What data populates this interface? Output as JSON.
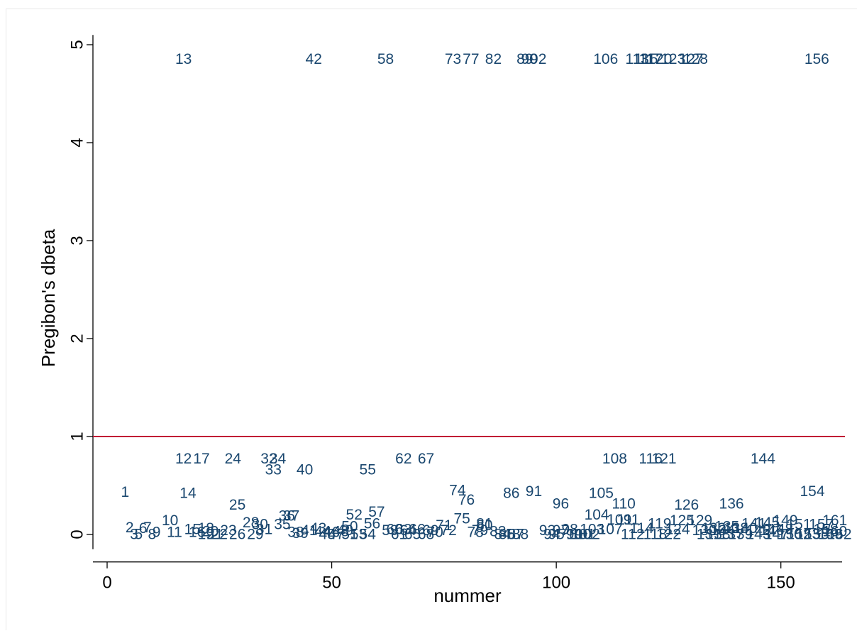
{
  "chart_data": {
    "type": "scatter",
    "marker": "observation-number labels",
    "xlabel": "nummer",
    "ylabel": "Pregibon's dbeta",
    "xlim": [
      -3,
      165
    ],
    "ylim": [
      -0.15,
      5.1
    ],
    "xticks": [
      0,
      50,
      100,
      150
    ],
    "yticks": [
      0,
      1,
      2,
      3,
      4,
      5
    ],
    "grid": false,
    "reference_line": {
      "y": 1,
      "color": "#c10534"
    },
    "label_color": "#1a476f",
    "points": [
      {
        "label": "1",
        "x": 4,
        "y": 0.43
      },
      {
        "label": "2",
        "x": 5,
        "y": 0.07
      },
      {
        "label": "3",
        "x": 6,
        "y": 0.0
      },
      {
        "label": "5",
        "x": 7,
        "y": 0.0
      },
      {
        "label": "6",
        "x": 8,
        "y": 0.06
      },
      {
        "label": "7",
        "x": 9,
        "y": 0.07
      },
      {
        "label": "8",
        "x": 10,
        "y": 0.0
      },
      {
        "label": "9",
        "x": 11,
        "y": 0.02
      },
      {
        "label": "10",
        "x": 14,
        "y": 0.14
      },
      {
        "label": "11",
        "x": 15,
        "y": 0.02
      },
      {
        "label": "12",
        "x": 17,
        "y": 0.77
      },
      {
        "label": "13",
        "x": 17,
        "y": 4.85
      },
      {
        "label": "14",
        "x": 18,
        "y": 0.42
      },
      {
        "label": "15",
        "x": 19,
        "y": 0.05
      },
      {
        "label": "16",
        "x": 20,
        "y": 0.02
      },
      {
        "label": "17",
        "x": 21,
        "y": 0.77
      },
      {
        "label": "18",
        "x": 22,
        "y": 0.06
      },
      {
        "label": "19",
        "x": 22,
        "y": 0.0
      },
      {
        "label": "20",
        "x": 23,
        "y": 0.03
      },
      {
        "label": "21",
        "x": 24,
        "y": 0.0
      },
      {
        "label": "22",
        "x": 25,
        "y": 0.0
      },
      {
        "label": "23",
        "x": 27,
        "y": 0.04
      },
      {
        "label": "24",
        "x": 28,
        "y": 0.77
      },
      {
        "label": "25",
        "x": 29,
        "y": 0.3
      },
      {
        "label": "26",
        "x": 29,
        "y": 0.0
      },
      {
        "label": "28",
        "x": 32,
        "y": 0.12
      },
      {
        "label": "29",
        "x": 33,
        "y": 0.0
      },
      {
        "label": "30",
        "x": 34,
        "y": 0.1
      },
      {
        "label": "31",
        "x": 35,
        "y": 0.05
      },
      {
        "label": "32",
        "x": 36,
        "y": 0.77
      },
      {
        "label": "33",
        "x": 37,
        "y": 0.66
      },
      {
        "label": "34",
        "x": 38,
        "y": 0.77
      },
      {
        "label": "35",
        "x": 39,
        "y": 0.1
      },
      {
        "label": "36",
        "x": 40,
        "y": 0.19
      },
      {
        "label": "37",
        "x": 41,
        "y": 0.19
      },
      {
        "label": "38",
        "x": 42,
        "y": 0.02
      },
      {
        "label": "39",
        "x": 43,
        "y": 0.01
      },
      {
        "label": "40",
        "x": 44,
        "y": 0.66
      },
      {
        "label": "41",
        "x": 45,
        "y": 0.04
      },
      {
        "label": "42",
        "x": 46,
        "y": 4.85
      },
      {
        "label": "43",
        "x": 47,
        "y": 0.06
      },
      {
        "label": "44",
        "x": 48,
        "y": 0.03
      },
      {
        "label": "45",
        "x": 49,
        "y": 0.0
      },
      {
        "label": "46",
        "x": 50,
        "y": 0.02
      },
      {
        "label": "47",
        "x": 51,
        "y": 0.0
      },
      {
        "label": "48",
        "x": 52,
        "y": 0.03
      },
      {
        "label": "49",
        "x": 53,
        "y": 0.04
      },
      {
        "label": "50",
        "x": 54,
        "y": 0.08
      },
      {
        "label": "51",
        "x": 54,
        "y": 0.0
      },
      {
        "label": "52",
        "x": 55,
        "y": 0.2
      },
      {
        "label": "53",
        "x": 56,
        "y": 0.0
      },
      {
        "label": "54",
        "x": 58,
        "y": 0.0
      },
      {
        "label": "55",
        "x": 58,
        "y": 0.66
      },
      {
        "label": "56",
        "x": 59,
        "y": 0.11
      },
      {
        "label": "57",
        "x": 60,
        "y": 0.23
      },
      {
        "label": "58",
        "x": 62,
        "y": 4.85
      },
      {
        "label": "59",
        "x": 63,
        "y": 0.04
      },
      {
        "label": "60",
        "x": 64,
        "y": 0.05
      },
      {
        "label": "61",
        "x": 65,
        "y": 0.0
      },
      {
        "label": "62",
        "x": 66,
        "y": 0.77
      },
      {
        "label": "63",
        "x": 66,
        "y": 0.05
      },
      {
        "label": "64",
        "x": 67,
        "y": 0.04
      },
      {
        "label": "65",
        "x": 68,
        "y": 0.0
      },
      {
        "label": "66",
        "x": 69,
        "y": 0.05
      },
      {
        "label": "67",
        "x": 71,
        "y": 0.77
      },
      {
        "label": "68",
        "x": 71,
        "y": 0.0
      },
      {
        "label": "69",
        "x": 72,
        "y": 0.04
      },
      {
        "label": "70",
        "x": 73,
        "y": 0.02
      },
      {
        "label": "71",
        "x": 75,
        "y": 0.09
      },
      {
        "label": "72",
        "x": 76,
        "y": 0.04
      },
      {
        "label": "73",
        "x": 77,
        "y": 4.85
      },
      {
        "label": "74",
        "x": 78,
        "y": 0.45
      },
      {
        "label": "75",
        "x": 79,
        "y": 0.16
      },
      {
        "label": "76",
        "x": 80,
        "y": 0.35
      },
      {
        "label": "77",
        "x": 81,
        "y": 4.85
      },
      {
        "label": "78",
        "x": 82,
        "y": 0.02
      },
      {
        "label": "79",
        "x": 83,
        "y": 0.04
      },
      {
        "label": "80",
        "x": 84,
        "y": 0.09
      },
      {
        "label": "81",
        "x": 84,
        "y": 0.11
      },
      {
        "label": "82",
        "x": 86,
        "y": 4.85
      },
      {
        "label": "83",
        "x": 87,
        "y": 0.03
      },
      {
        "label": "84",
        "x": 88,
        "y": 0.0
      },
      {
        "label": "85",
        "x": 89,
        "y": 0.0
      },
      {
        "label": "86",
        "x": 90,
        "y": 0.42
      },
      {
        "label": "87",
        "x": 91,
        "y": 0.0
      },
      {
        "label": "88",
        "x": 92,
        "y": 0.0
      },
      {
        "label": "89",
        "x": 93,
        "y": 4.85
      },
      {
        "label": "90",
        "x": 94,
        "y": 4.85
      },
      {
        "label": "91",
        "x": 95,
        "y": 0.44
      },
      {
        "label": "92",
        "x": 96,
        "y": 4.85
      },
      {
        "label": "93",
        "x": 98,
        "y": 0.04
      },
      {
        "label": "94",
        "x": 99,
        "y": 0.0
      },
      {
        "label": "95",
        "x": 100,
        "y": 0.0
      },
      {
        "label": "96",
        "x": 101,
        "y": 0.31
      },
      {
        "label": "97",
        "x": 101,
        "y": 0.04
      },
      {
        "label": "98",
        "x": 103,
        "y": 0.05
      },
      {
        "label": "99",
        "x": 104,
        "y": 0.0
      },
      {
        "label": "100",
        "x": 105,
        "y": 0.0
      },
      {
        "label": "101",
        "x": 106,
        "y": 0.0
      },
      {
        "label": "102",
        "x": 107,
        "y": 0.0
      },
      {
        "label": "103",
        "x": 108,
        "y": 0.05
      },
      {
        "label": "104",
        "x": 109,
        "y": 0.2
      },
      {
        "label": "105",
        "x": 110,
        "y": 0.42
      },
      {
        "label": "106",
        "x": 111,
        "y": 4.85
      },
      {
        "label": "107",
        "x": 112,
        "y": 0.05
      },
      {
        "label": "108",
        "x": 113,
        "y": 0.77
      },
      {
        "label": "109",
        "x": 114,
        "y": 0.15
      },
      {
        "label": "110",
        "x": 115,
        "y": 0.31
      },
      {
        "label": "111",
        "x": 116,
        "y": 0.15
      },
      {
        "label": "112",
        "x": 117,
        "y": 0.0
      },
      {
        "label": "113",
        "x": 118,
        "y": 4.85
      },
      {
        "label": "114",
        "x": 119,
        "y": 0.06
      },
      {
        "label": "115",
        "x": 120,
        "y": 4.85
      },
      {
        "label": "116",
        "x": 121,
        "y": 0.77
      },
      {
        "label": "117",
        "x": 121,
        "y": 4.85
      },
      {
        "label": "118",
        "x": 122,
        "y": 0.0
      },
      {
        "label": "119",
        "x": 123,
        "y": 0.11
      },
      {
        "label": "120",
        "x": 123,
        "y": 4.85
      },
      {
        "label": "121",
        "x": 124,
        "y": 0.77
      },
      {
        "label": "122",
        "x": 125,
        "y": 0.0
      },
      {
        "label": "123",
        "x": 126,
        "y": 4.85
      },
      {
        "label": "124",
        "x": 127,
        "y": 0.05
      },
      {
        "label": "125",
        "x": 128,
        "y": 0.14
      },
      {
        "label": "126",
        "x": 129,
        "y": 0.3
      },
      {
        "label": "127",
        "x": 130,
        "y": 4.85
      },
      {
        "label": "128",
        "x": 131,
        "y": 4.85
      },
      {
        "label": "129",
        "x": 132,
        "y": 0.14
      },
      {
        "label": "130",
        "x": 133,
        "y": 0.04
      },
      {
        "label": "131",
        "x": 134,
        "y": 0.0
      },
      {
        "label": "132",
        "x": 135,
        "y": 0.06
      },
      {
        "label": "133",
        "x": 136,
        "y": 0.0
      },
      {
        "label": "134",
        "x": 137,
        "y": 0.04
      },
      {
        "label": "135",
        "x": 138,
        "y": 0.08
      },
      {
        "label": "136",
        "x": 139,
        "y": 0.31
      },
      {
        "label": "137",
        "x": 139,
        "y": 0.0
      },
      {
        "label": "138",
        "x": 140,
        "y": 0.06
      },
      {
        "label": "139",
        "x": 141,
        "y": 0.0
      },
      {
        "label": "140",
        "x": 142,
        "y": 0.06
      },
      {
        "label": "141",
        "x": 144,
        "y": 0.11
      },
      {
        "label": "142",
        "x": 145,
        "y": 0.04
      },
      {
        "label": "143",
        "x": 145,
        "y": 0.0
      },
      {
        "label": "144",
        "x": 146,
        "y": 0.77
      },
      {
        "label": "145",
        "x": 147,
        "y": 0.12
      },
      {
        "label": "146",
        "x": 148,
        "y": 0.04
      },
      {
        "label": "147",
        "x": 149,
        "y": 0.0
      },
      {
        "label": "148",
        "x": 150,
        "y": 0.05
      },
      {
        "label": "149",
        "x": 151,
        "y": 0.14
      },
      {
        "label": "150",
        "x": 152,
        "y": 0.0
      },
      {
        "label": "151",
        "x": 154,
        "y": 0.1
      },
      {
        "label": "152",
        "x": 154,
        "y": 0.0
      },
      {
        "label": "153",
        "x": 156,
        "y": 0.0
      },
      {
        "label": "154",
        "x": 157,
        "y": 0.44
      },
      {
        "label": "155",
        "x": 158,
        "y": 0.0
      },
      {
        "label": "156",
        "x": 158,
        "y": 4.85
      },
      {
        "label": "157",
        "x": 159,
        "y": 0.1
      },
      {
        "label": "158",
        "x": 160,
        "y": 0.05
      },
      {
        "label": "159",
        "x": 161,
        "y": 0.0
      },
      {
        "label": "160",
        "x": 162,
        "y": 0.03
      },
      {
        "label": "161",
        "x": 162,
        "y": 0.14
      },
      {
        "label": "162",
        "x": 163,
        "y": 0.0
      }
    ]
  }
}
